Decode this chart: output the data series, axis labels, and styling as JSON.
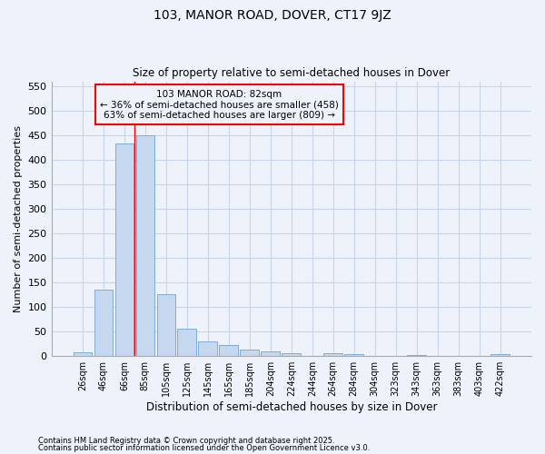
{
  "title": "103, MANOR ROAD, DOVER, CT17 9JZ",
  "subtitle": "Size of property relative to semi-detached houses in Dover",
  "xlabel": "Distribution of semi-detached houses by size in Dover",
  "ylabel": "Number of semi-detached properties",
  "footnote1": "Contains HM Land Registry data © Crown copyright and database right 2025.",
  "footnote2": "Contains public sector information licensed under the Open Government Licence v3.0.",
  "categories": [
    "26sqm",
    "46sqm",
    "66sqm",
    "85sqm",
    "105sqm",
    "125sqm",
    "145sqm",
    "165sqm",
    "185sqm",
    "204sqm",
    "224sqm",
    "244sqm",
    "264sqm",
    "284sqm",
    "304sqm",
    "323sqm",
    "343sqm",
    "363sqm",
    "383sqm",
    "403sqm",
    "422sqm"
  ],
  "values": [
    7,
    136,
    433,
    450,
    127,
    55,
    30,
    22,
    13,
    9,
    6,
    0,
    6,
    4,
    0,
    0,
    3,
    0,
    0,
    0,
    5
  ],
  "bar_color": "#c5d8ef",
  "bar_edge_color": "#7eadd4",
  "grid_color": "#c8d4e8",
  "bg_color": "#eef2fb",
  "property_line_x": 2.5,
  "property_sqm": 82,
  "pct_smaller": 36,
  "n_smaller": 458,
  "pct_larger": 63,
  "n_larger": 809,
  "annotation_label": "103 MANOR ROAD: 82sqm",
  "annotation_smaller": "← 36% of semi-detached houses are smaller (458)",
  "annotation_larger": "63% of semi-detached houses are larger (809) →",
  "ylim": [
    0,
    560
  ],
  "yticks": [
    0,
    50,
    100,
    150,
    200,
    250,
    300,
    350,
    400,
    450,
    500,
    550
  ]
}
